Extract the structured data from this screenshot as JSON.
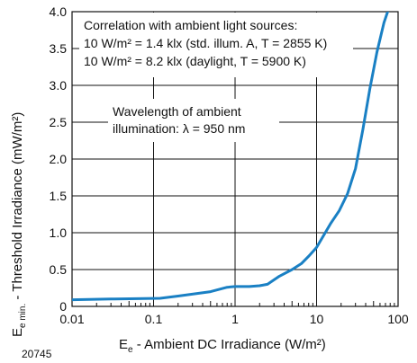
{
  "figure_id": "20745",
  "chart_data": {
    "type": "line",
    "xlabel": {
      "main": "E",
      "sub": "e",
      "rest": " - Ambient DC Irradiance (W/m²)"
    },
    "ylabel": {
      "main": "E",
      "sub": "e min.",
      "rest": " - Threshold Irradiance (mW/m²)"
    },
    "x_scale": "log",
    "xlim": [
      0.01,
      100
    ],
    "ylim": [
      0,
      4.0
    ],
    "x_ticks": [
      {
        "value": 0.01,
        "label": "0.01"
      },
      {
        "value": 0.1,
        "label": "0.1"
      },
      {
        "value": 1,
        "label": "1"
      },
      {
        "value": 10,
        "label": "10"
      },
      {
        "value": 100,
        "label": "100"
      }
    ],
    "y_ticks": [
      {
        "value": 0,
        "label": "0"
      },
      {
        "value": 0.5,
        "label": "0.5"
      },
      {
        "value": 1.0,
        "label": "1.0"
      },
      {
        "value": 1.5,
        "label": "1.5"
      },
      {
        "value": 2.0,
        "label": "2.0"
      },
      {
        "value": 2.5,
        "label": "2.5"
      },
      {
        "value": 3.0,
        "label": "3.0"
      },
      {
        "value": 3.5,
        "label": "3.5"
      },
      {
        "value": 4.0,
        "label": "4.0"
      }
    ],
    "grid": true,
    "line_color": "#1a80c4",
    "series": [
      {
        "x": [
          0.01,
          0.03,
          0.12,
          0.2,
          0.5,
          0.8,
          1.0,
          1.5,
          2.0,
          2.5,
          3.5,
          5.0,
          6.5,
          8.0,
          10.0,
          12.0,
          15.0,
          19.0,
          24.0,
          30.0,
          37.0,
          45.0,
          55.0,
          67.0,
          80.0,
          90.0
        ],
        "y": [
          0.09,
          0.1,
          0.11,
          0.14,
          0.2,
          0.26,
          0.27,
          0.27,
          0.28,
          0.3,
          0.41,
          0.5,
          0.58,
          0.68,
          0.8,
          0.95,
          1.13,
          1.3,
          1.53,
          1.87,
          2.4,
          2.95,
          3.45,
          3.85,
          4.1,
          4.3
        ]
      }
    ],
    "annotations": {
      "correlation": [
        "Correlation with ambient light sources:",
        "10 W/m² = 1.4 klx (std. illum. A, T = 2855 K)",
        "10 W/m² = 8.2 klx (daylight, T = 5900 K)"
      ],
      "wavelength": [
        "Wavelength of ambient",
        "illumination: λ = 950 nm"
      ]
    }
  }
}
